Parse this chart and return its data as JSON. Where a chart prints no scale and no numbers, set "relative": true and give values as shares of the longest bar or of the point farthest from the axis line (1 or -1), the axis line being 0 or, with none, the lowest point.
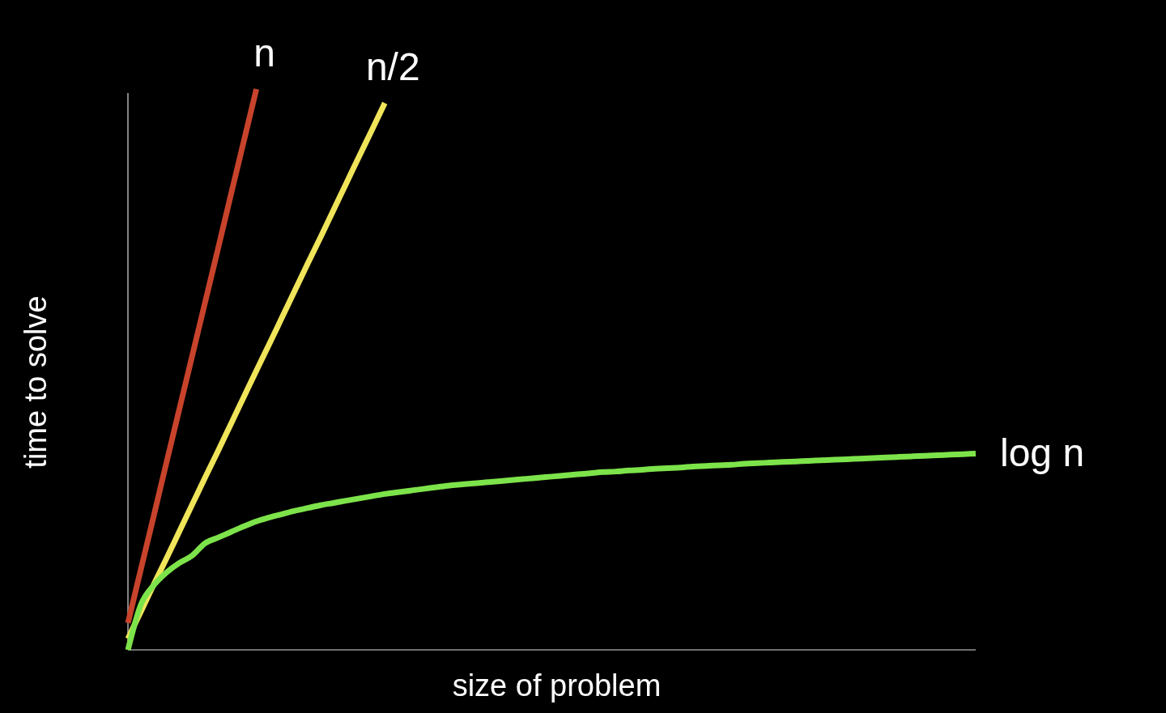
{
  "chart_data": {
    "type": "line",
    "relative": true,
    "xlabel": "size of problem",
    "ylabel": "time to solve",
    "marker": "none",
    "line_style": "solid",
    "categories": [
      null,
      null,
      null,
      null,
      null,
      null,
      null,
      null,
      null,
      null,
      null,
      null,
      null,
      null,
      null,
      null,
      null,
      null,
      null,
      null,
      null,
      null,
      null,
      null,
      null,
      null,
      null,
      null,
      null,
      null,
      null,
      null,
      null,
      null,
      null,
      null,
      null,
      null,
      null,
      null,
      null,
      null,
      null,
      null,
      null,
      null,
      null,
      null,
      null,
      null,
      null,
      null,
      null,
      null,
      null,
      null,
      null,
      null,
      null,
      null,
      null,
      null,
      null,
      null,
      null,
      null,
      null
    ],
    "series": [
      {
        "name": "n",
        "color": "#c8432b",
        "values": [
          0.048,
          0.143,
          0.238,
          0.334,
          0.429,
          0.524,
          0.619,
          0.714,
          0.81,
          0.905,
          1,
          null,
          null,
          null,
          null,
          null,
          null,
          null,
          null,
          null,
          null,
          null,
          null,
          null,
          null,
          null,
          null,
          null,
          null,
          null,
          null,
          null,
          null,
          null,
          null,
          null,
          null,
          null,
          null,
          null,
          null,
          null,
          null,
          null,
          null,
          null,
          null,
          null,
          null,
          null,
          null,
          null,
          null,
          null,
          null,
          null,
          null,
          null,
          null,
          null,
          null,
          null,
          null,
          null,
          null,
          null,
          null
        ]
      },
      {
        "name": "n/2",
        "color": "#f0e55a",
        "values": [
          0.02,
          0.068,
          0.116,
          0.163,
          0.211,
          0.259,
          0.307,
          0.354,
          0.402,
          0.45,
          0.498,
          0.545,
          0.593,
          0.641,
          0.689,
          0.736,
          0.784,
          0.832,
          0.88,
          0.927,
          0.975,
          null,
          null,
          null,
          null,
          null,
          null,
          null,
          null,
          null,
          null,
          null,
          null,
          null,
          null,
          null,
          null,
          null,
          null,
          null,
          null,
          null,
          null,
          null,
          null,
          null,
          null,
          null,
          null,
          null,
          null,
          null,
          null,
          null,
          null,
          null,
          null,
          null,
          null,
          null,
          null,
          null,
          null,
          null,
          null,
          null,
          null
        ]
      },
      {
        "name": "log n",
        "color": "#7de34a",
        "values": [
          0,
          0.08,
          0.115,
          0.138,
          0.155,
          0.168,
          0.19,
          0.2,
          0.21,
          0.22,
          0.229,
          0.236,
          0.242,
          0.248,
          0.253,
          0.258,
          0.262,
          0.266,
          0.27,
          0.274,
          0.278,
          0.281,
          0.284,
          0.287,
          0.29,
          0.293,
          0.295,
          0.297,
          0.299,
          0.301,
          0.303,
          0.305,
          0.307,
          0.309,
          0.311,
          0.313,
          0.315,
          0.317,
          0.318,
          0.32,
          0.321,
          0.323,
          0.324,
          0.325,
          0.327,
          0.328,
          0.329,
          0.33,
          0.332,
          0.333,
          0.334,
          0.335,
          0.336,
          0.337,
          0.338,
          0.339,
          0.34,
          0.341,
          0.342,
          0.343,
          0.344,
          0.345,
          0.346,
          0.347,
          0.348,
          0.349,
          0.35
        ]
      }
    ]
  }
}
